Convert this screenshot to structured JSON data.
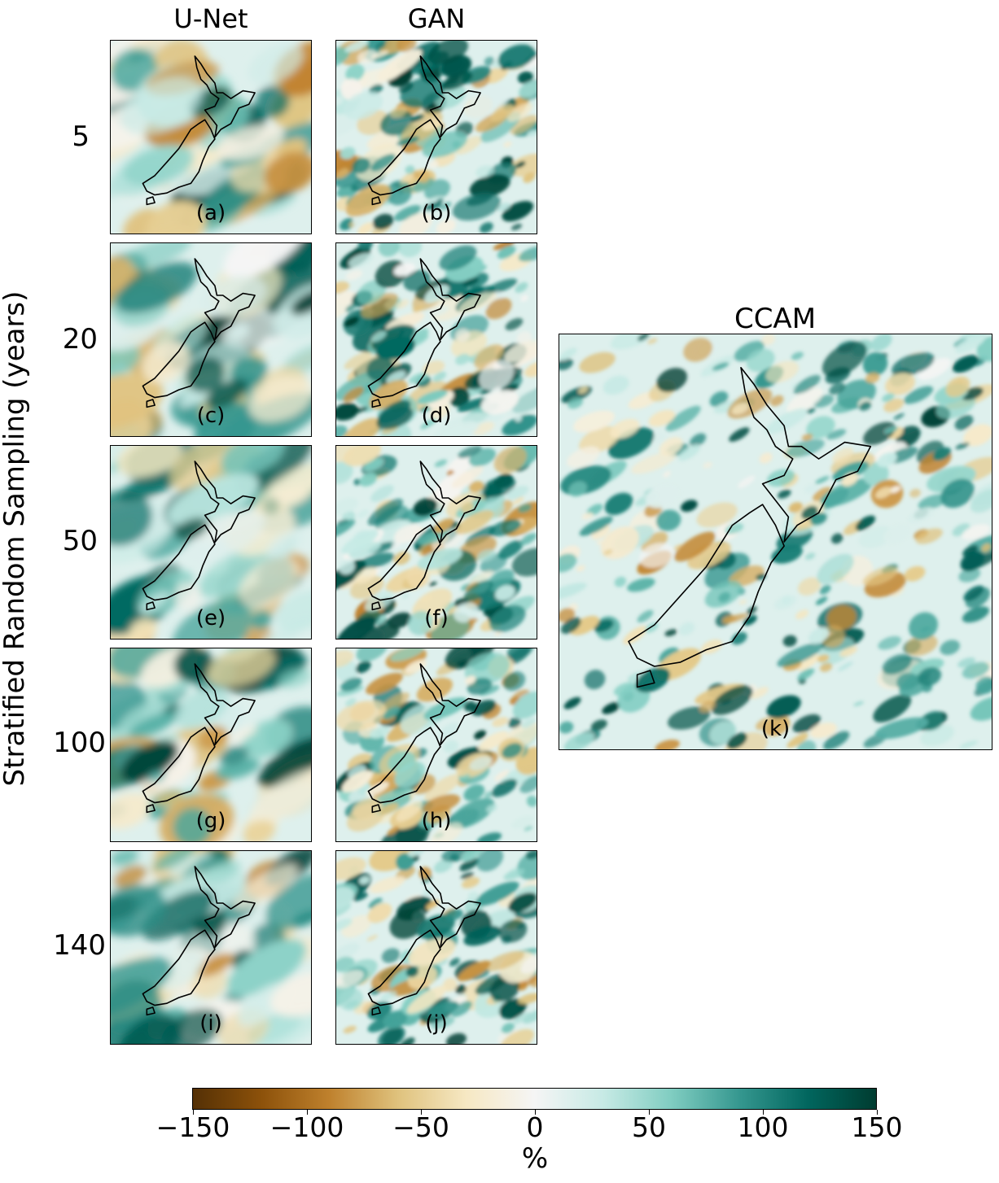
{
  "chart_data": {
    "type": "heatmap",
    "columns": [
      "U-Net",
      "GAN"
    ],
    "reference_title": "CCAM",
    "ylabel": "Stratified Random Sampling (years)",
    "rows": [
      "5",
      "20",
      "50",
      "100",
      "140"
    ],
    "panels": [
      {
        "label": "(a)",
        "model": "U-Net",
        "row": "5"
      },
      {
        "label": "(b)",
        "model": "GAN",
        "row": "5"
      },
      {
        "label": "(c)",
        "model": "U-Net",
        "row": "20"
      },
      {
        "label": "(d)",
        "model": "GAN",
        "row": "20"
      },
      {
        "label": "(e)",
        "model": "U-Net",
        "row": "50"
      },
      {
        "label": "(f)",
        "model": "GAN",
        "row": "50"
      },
      {
        "label": "(g)",
        "model": "U-Net",
        "row": "100"
      },
      {
        "label": "(h)",
        "model": "GAN",
        "row": "100"
      },
      {
        "label": "(i)",
        "model": "U-Net",
        "row": "140"
      },
      {
        "label": "(j)",
        "model": "GAN",
        "row": "140"
      },
      {
        "label": "(k)",
        "model": "CCAM",
        "row": ""
      }
    ],
    "colorbar": {
      "label": "%",
      "range": [
        -150,
        150
      ],
      "ticks": [
        "−150",
        "−100",
        "−50",
        "0",
        "50",
        "100",
        "150"
      ],
      "colormap": "BrBG",
      "colors": [
        "#543005",
        "#8c510a",
        "#bf812d",
        "#dfc27d",
        "#f6e8c3",
        "#f5f5f5",
        "#c7eae5",
        "#80cdc1",
        "#35978f",
        "#01665e",
        "#003c30"
      ]
    }
  }
}
